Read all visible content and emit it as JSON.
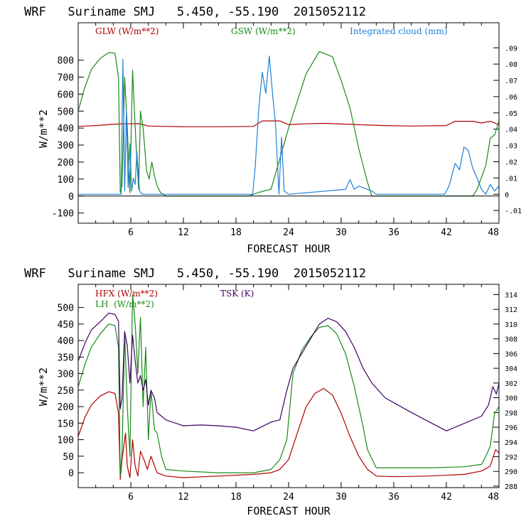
{
  "chart_data": [
    {
      "type": "line",
      "title": "WRF   Suriname SMJ   5.450, -55.190  2015052112",
      "xlabel": "FORECAST HOUR",
      "ylabel": "W/m**2",
      "xlim": [
        0,
        48
      ],
      "ylim": [
        -160,
        1020
      ],
      "xticks": [
        "6",
        "12",
        "18",
        "24",
        "30",
        "36",
        "42",
        "48"
      ],
      "xtick_values": [
        6,
        12,
        18,
        24,
        30,
        36,
        42,
        48
      ],
      "yticks": [
        "-100",
        "0",
        "100",
        "200",
        "300",
        "400",
        "500",
        "600",
        "700",
        "800"
      ],
      "ytick_values": [
        -100,
        0,
        100,
        200,
        300,
        400,
        500,
        600,
        700,
        800
      ],
      "y2lim": [
        -0.0178,
        0.1054
      ],
      "y2ticks": [
        "-.01",
        "0",
        ".01",
        ".02",
        ".03",
        ".04",
        ".05",
        ".06",
        ".07",
        ".08",
        ".09"
      ],
      "y2tick_values": [
        -0.01,
        0,
        0.01,
        0.02,
        0.03,
        0.04,
        0.05,
        0.06,
        0.07,
        0.08,
        0.09
      ],
      "legend": [
        "GLW (W/m**2)",
        "GSW (W/m**2)",
        "Integrated cloud (mm)"
      ],
      "series": [
        {
          "name": "GLW (W/m**2)",
          "color": "#b00000",
          "axis": "left",
          "x": [
            0,
            2,
            4,
            5,
            6,
            7,
            8,
            10,
            12,
            16,
            20,
            21,
            23,
            24,
            26,
            28,
            32,
            33,
            35,
            38,
            42,
            43,
            45,
            46,
            47,
            48
          ],
          "y": [
            410,
            415,
            422,
            425,
            425,
            426,
            412,
            410,
            408,
            408,
            410,
            442,
            442,
            420,
            425,
            428,
            420,
            418,
            415,
            412,
            415,
            440,
            440,
            430,
            440,
            420
          ]
        },
        {
          "name": "GSW (W/m**2)",
          "color": "#1a8a1a",
          "axis": "left",
          "x": [
            0,
            0.7,
            1.5,
            2.5,
            3.5,
            4.2,
            4.6,
            4.8,
            5.0,
            5.3,
            5.6,
            5.9,
            6.2,
            6.6,
            6.9,
            7.1,
            7.4,
            7.8,
            8.1,
            8.4,
            8.7,
            9.0,
            9.4,
            10,
            19.5,
            20.5,
            22,
            24,
            26,
            27.5,
            29,
            30,
            31,
            32,
            33,
            33.5,
            45,
            45.5,
            46.5,
            47,
            47.5,
            48
          ],
          "y": [
            500,
            630,
            745,
            810,
            845,
            840,
            700,
            20,
            60,
            700,
            400,
            20,
            740,
            300,
            40,
            500,
            400,
            150,
            100,
            200,
            120,
            60,
            20,
            0,
            0,
            20,
            40,
            400,
            720,
            850,
            820,
            680,
            520,
            280,
            80,
            0,
            0,
            40,
            180,
            340,
            360,
            440
          ]
        },
        {
          "name": "Integrated cloud (mm)",
          "color": "#1f7fd6",
          "axis": "right",
          "x": [
            0,
            4.9,
            5.1,
            5.3,
            5.5,
            5.7,
            5.9,
            6.1,
            6.3,
            6.5,
            6.7,
            7.0,
            7.3,
            19.9,
            20.2,
            20.6,
            21.0,
            21.4,
            21.8,
            22.2,
            22.5,
            22.9,
            23.2,
            23.5,
            24,
            30.5,
            31,
            31.5,
            32,
            33.5,
            34,
            41.8,
            42.3,
            43,
            43.5,
            44,
            44.5,
            45,
            45.5,
            46,
            46.5,
            47,
            47.5,
            48
          ],
          "y": [
            0,
            0,
            0.083,
            0.002,
            0.052,
            0.004,
            0.031,
            0.002,
            0.01,
            0.006,
            0.026,
            0.002,
            0.0,
            0,
            0.017,
            0.053,
            0.075,
            0.062,
            0.085,
            0.06,
            0.044,
            0.0,
            0.035,
            0.002,
            0,
            0.003,
            0.009,
            0.003,
            0.005,
            0.002,
            0,
            0,
            0.005,
            0.019,
            0.015,
            0.029,
            0.027,
            0.016,
            0.01,
            0.003,
            0.0,
            0.006,
            0.002,
            0.005
          ]
        }
      ]
    },
    {
      "type": "line",
      "title": "WRF   Suriname SMJ   5.450, -55.190  2015052112",
      "xlabel": "FORECAST HOUR",
      "ylabel": "W/m**2",
      "xlim": [
        0,
        48
      ],
      "ylim": [
        -45,
        570
      ],
      "xticks": [
        "6",
        "12",
        "18",
        "24",
        "30",
        "36",
        "42",
        "48"
      ],
      "xtick_values": [
        6,
        12,
        18,
        24,
        30,
        36,
        42,
        48
      ],
      "yticks": [
        "0",
        "50",
        "100",
        "150",
        "200",
        "250",
        "300",
        "350",
        "400",
        "450",
        "500"
      ],
      "ytick_values": [
        0,
        50,
        100,
        150,
        200,
        250,
        300,
        350,
        400,
        450,
        500
      ],
      "y2lim": [
        287.8,
        315.4
      ],
      "y2ticks": [
        "288",
        "290",
        "292",
        "294",
        "296",
        "298",
        "300",
        "302",
        "304",
        "306",
        "308",
        "310",
        "312",
        "314"
      ],
      "y2tick_values": [
        288,
        290,
        292,
        294,
        296,
        298,
        300,
        302,
        304,
        306,
        308,
        310,
        312,
        314
      ],
      "legend": [
        "HFX (W/m**2)",
        "LH  (W/m**2)",
        "TSK (K)"
      ],
      "series": [
        {
          "name": "HFX (W/m**2)",
          "color": "#b00000",
          "axis": "left",
          "x": [
            0,
            0.8,
            1.5,
            2.5,
            3.5,
            4.2,
            4.6,
            4.8,
            5.0,
            5.4,
            5.6,
            5.9,
            6.2,
            6.5,
            6.8,
            7.1,
            7.5,
            7.9,
            8.3,
            9,
            10,
            12,
            16,
            20,
            22,
            23,
            24,
            25,
            26,
            27,
            28,
            29,
            30,
            31,
            32,
            33,
            34,
            36,
            40,
            44,
            46,
            47,
            47.6,
            48
          ],
          "y": [
            110,
            170,
            205,
            232,
            245,
            240,
            180,
            -20,
            40,
            120,
            20,
            -15,
            100,
            20,
            -10,
            65,
            40,
            10,
            50,
            0,
            -10,
            -15,
            -10,
            -5,
            0,
            10,
            40,
            120,
            200,
            240,
            255,
            235,
            180,
            110,
            50,
            10,
            -10,
            -12,
            -10,
            -5,
            5,
            20,
            70,
            60
          ]
        },
        {
          "name": "LH  (W/m**2)",
          "color": "#1a8a1a",
          "axis": "left",
          "x": [
            0,
            0.8,
            1.5,
            2.5,
            3.5,
            4.2,
            4.6,
            4.8,
            5.0,
            5.3,
            5.6,
            5.9,
            6.2,
            6.5,
            6.8,
            7.1,
            7.4,
            7.7,
            8.0,
            8.3,
            8.7,
            9.0,
            9.5,
            10,
            12,
            16,
            20,
            22,
            23,
            23.8,
            24.5,
            25.5,
            26.5,
            27.5,
            28.5,
            29.5,
            30.5,
            31.5,
            32.5,
            33,
            34,
            36,
            40,
            44,
            46,
            46.5,
            47,
            47.5,
            48
          ],
          "y": [
            260,
            330,
            380,
            420,
            450,
            445,
            380,
            -10,
            60,
            420,
            200,
            50,
            540,
            450,
            300,
            470,
            200,
            380,
            100,
            250,
            130,
            120,
            50,
            10,
            5,
            0,
            0,
            10,
            40,
            100,
            300,
            370,
            410,
            440,
            445,
            420,
            360,
            260,
            140,
            70,
            15,
            15,
            15,
            18,
            25,
            50,
            80,
            180,
            200
          ]
        },
        {
          "name": "TSK (K)",
          "color": "#400060",
          "axis": "right",
          "x": [
            0,
            0.8,
            1.5,
            2.5,
            3.5,
            4.2,
            4.6,
            4.8,
            5.0,
            5.3,
            5.6,
            5.9,
            6.2,
            6.5,
            6.8,
            7.1,
            7.4,
            7.7,
            8.0,
            8.3,
            8.7,
            9.0,
            9.5,
            10,
            12,
            14,
            16,
            18,
            20,
            22,
            23,
            23.8,
            24.5,
            25.5,
            26.5,
            27.5,
            28.5,
            29.5,
            30.5,
            31.5,
            32.5,
            33.5,
            35,
            38,
            42,
            44,
            46,
            46.8,
            47.3,
            47.7,
            48
          ],
          "y": [
            305,
            307.5,
            309.2,
            310.3,
            311.5,
            311.3,
            310.4,
            298.5,
            300,
            309,
            307,
            302,
            308.5,
            305,
            302,
            303,
            301,
            302.5,
            299,
            301,
            300,
            298,
            297.5,
            297,
            296.2,
            296.3,
            296.2,
            296,
            295.5,
            296.7,
            297,
            301,
            304,
            306,
            308,
            310,
            310.8,
            310.3,
            309,
            306.8,
            304,
            302,
            300,
            298,
            295.5,
            296.5,
            297.5,
            299,
            301.5,
            300.5,
            302
          ]
        }
      ]
    }
  ]
}
